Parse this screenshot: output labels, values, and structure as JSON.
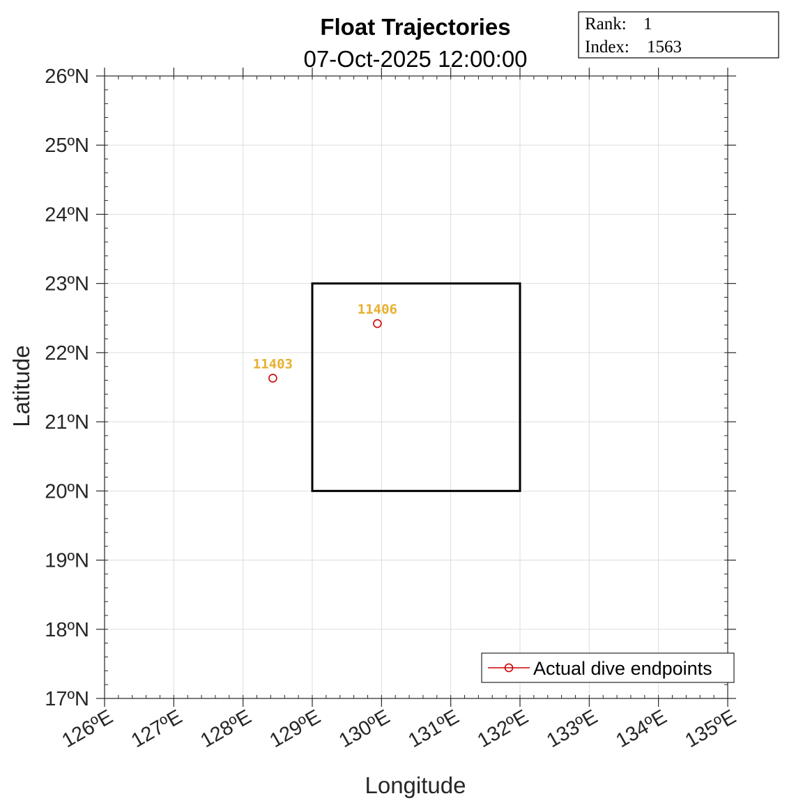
{
  "chart_data": {
    "type": "scatter",
    "title": "Float Trajectories",
    "subtitle": "07-Oct-2025 12:00:00",
    "xlabel": "Longitude",
    "ylabel": "Latitude",
    "xlim": [
      126,
      135
    ],
    "ylim": [
      17,
      26
    ],
    "grid": true,
    "x_ticks": [
      126,
      127,
      128,
      129,
      130,
      131,
      132,
      133,
      134,
      135
    ],
    "x_tick_labels": [
      "126ºE",
      "127ºE",
      "128ºE",
      "129ºE",
      "130ºE",
      "131ºE",
      "132ºE",
      "133ºE",
      "134ºE",
      "135ºE"
    ],
    "y_ticks": [
      17,
      18,
      19,
      20,
      21,
      22,
      23,
      24,
      25,
      26
    ],
    "y_tick_labels": [
      "17ºN",
      "18ºN",
      "19ºN",
      "20ºN",
      "21ºN",
      "22ºN",
      "23ºN",
      "24ºN",
      "25ºN",
      "26ºN"
    ],
    "series": [
      {
        "name": "Actual dive endpoints",
        "color": "#d00000",
        "marker": "circle",
        "points": [
          {
            "label": "11403",
            "x": 128.43,
            "y": 21.63
          },
          {
            "label": "11406",
            "x": 129.94,
            "y": 22.42
          }
        ]
      }
    ],
    "point_label_color": "#e8b030",
    "region_box": {
      "x": [
        129,
        132
      ],
      "y": [
        20,
        23
      ],
      "color": "#000000"
    },
    "legend": {
      "placement": "bottom-right",
      "entries": [
        "Actual dive endpoints"
      ]
    }
  },
  "info_box": {
    "rank_label": "Rank:",
    "rank_value": "1",
    "index_label": "Index:",
    "index_value": "1563"
  }
}
